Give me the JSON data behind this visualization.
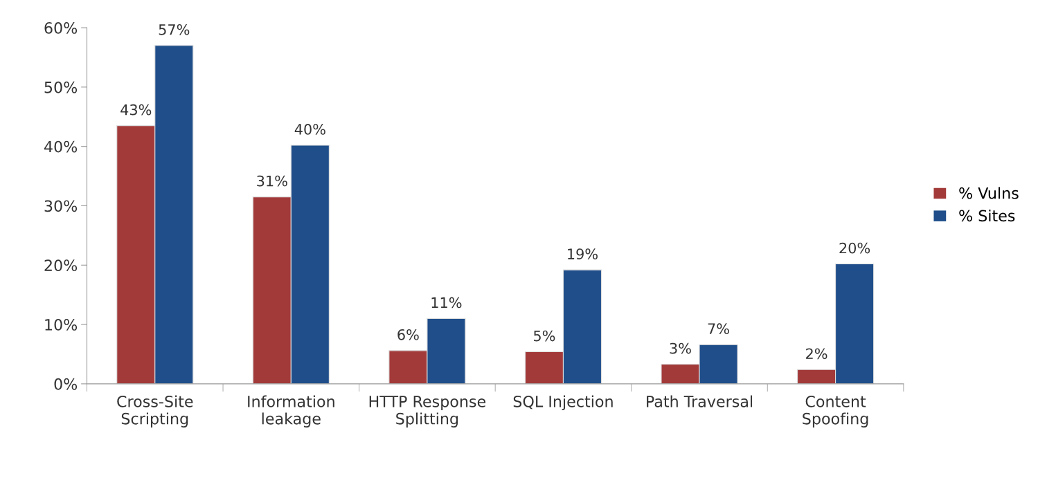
{
  "chart_data": {
    "type": "bar",
    "categories": [
      "Cross-Site\nScripting",
      "Information\nleakage",
      "HTTP Response\nSplitting",
      "SQL Injection",
      "Path Traversal",
      "Content\nSpoofing"
    ],
    "series": [
      {
        "name": "% Vulns",
        "color": "#a33a3a",
        "values": [
          43.5,
          31.5,
          5.6,
          5.4,
          3.3,
          2.4
        ],
        "value_labels": [
          "43%",
          "31%",
          "6%",
          "5%",
          "3%",
          "2%"
        ]
      },
      {
        "name": "% Sites",
        "color": "#1f4e8a",
        "values": [
          57,
          40.2,
          11,
          19.2,
          6.6,
          20.2
        ],
        "value_labels": [
          "57%",
          "40%",
          "11%",
          "19%",
          "7%",
          "20%"
        ]
      }
    ],
    "ylim": [
      0,
      60
    ],
    "yticks": [
      {
        "value": 0,
        "label": "0%"
      },
      {
        "value": 10,
        "label": "10%"
      },
      {
        "value": 20,
        "label": "20%"
      },
      {
        "value": 30,
        "label": "30%"
      },
      {
        "value": 40,
        "label": "40%"
      },
      {
        "value": 50,
        "label": "50%"
      },
      {
        "value": 60,
        "label": "60%"
      }
    ],
    "grid": false,
    "legend": "right"
  }
}
